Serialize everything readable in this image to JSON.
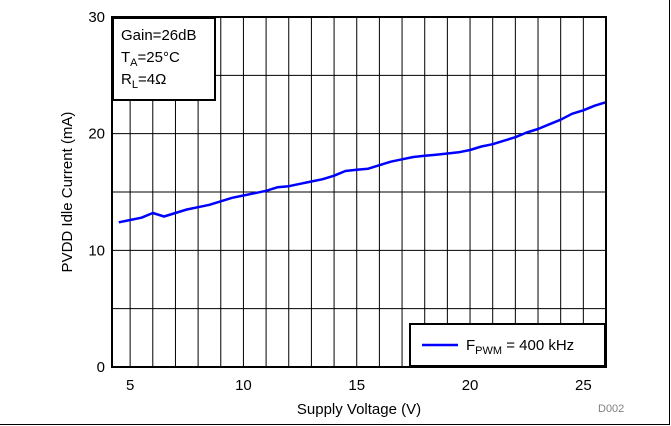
{
  "chart_data": {
    "type": "line",
    "xlabel": "Supply Voltage (V)",
    "ylabel": "PVDD Idle Current (mA)",
    "xlim": [
      4.2,
      26
    ],
    "ylim": [
      0,
      30
    ],
    "x_ticks": [
      "5",
      "10",
      "15",
      "20",
      "25"
    ],
    "y_ticks": [
      "0",
      "10",
      "20",
      "30"
    ],
    "grid": true,
    "annotation": {
      "gain": "Gain=26dB",
      "ta_main": "T",
      "ta_sub": "A",
      "ta_rest": "=25°C",
      "rl_main": "R",
      "rl_sub": "L",
      "rl_rest": "=4Ω"
    },
    "legend": {
      "position": "bottom-right",
      "main": "F",
      "sub": "PWM",
      "rest": " = 400 kHz"
    },
    "figure_id": "D002",
    "series": [
      {
        "color": "#0000ff",
        "x": [
          4.5,
          5.0,
          5.5,
          6.0,
          6.5,
          7.0,
          7.5,
          8.0,
          8.5,
          9.0,
          9.5,
          10.0,
          10.5,
          11.0,
          11.5,
          12.0,
          12.5,
          13.0,
          13.5,
          14.0,
          14.5,
          15.0,
          15.5,
          16.0,
          16.5,
          17.0,
          17.5,
          18.0,
          18.5,
          19.0,
          19.5,
          20.0,
          20.5,
          21.0,
          21.5,
          22.0,
          22.5,
          23.0,
          23.5,
          24.0,
          24.5,
          25.0,
          25.5,
          26.0
        ],
        "y": [
          12.4,
          12.6,
          12.8,
          13.2,
          12.9,
          13.2,
          13.5,
          13.7,
          13.9,
          14.2,
          14.5,
          14.7,
          14.9,
          15.1,
          15.4,
          15.5,
          15.7,
          15.9,
          16.1,
          16.4,
          16.8,
          16.9,
          17.0,
          17.3,
          17.6,
          17.8,
          18.0,
          18.1,
          18.2,
          18.3,
          18.4,
          18.6,
          18.9,
          19.1,
          19.4,
          19.7,
          20.1,
          20.4,
          20.8,
          21.2,
          21.7,
          22.0,
          22.4,
          22.7
        ]
      }
    ]
  }
}
